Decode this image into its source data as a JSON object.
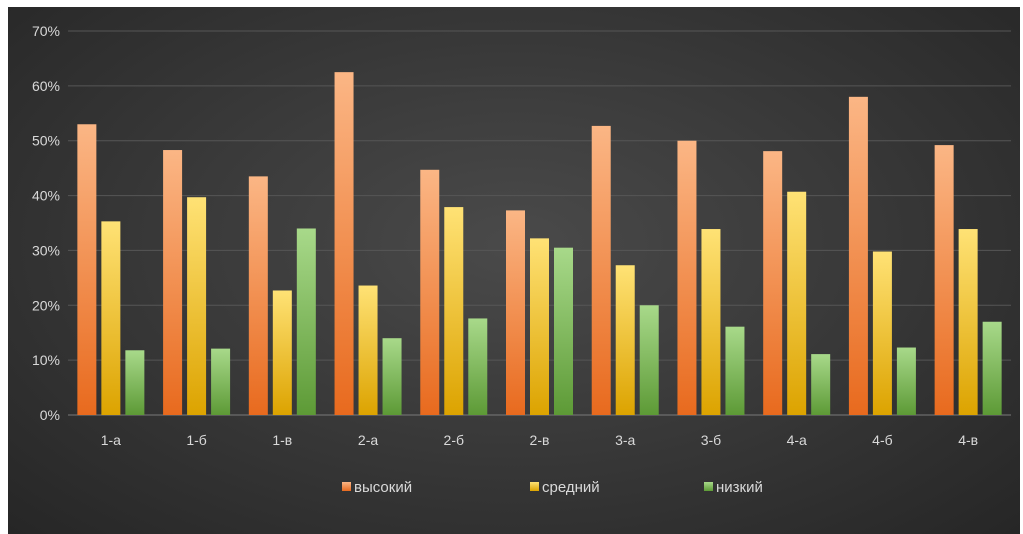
{
  "chart_data": {
    "type": "bar",
    "categories": [
      "1-а",
      "1-б",
      "1-в",
      "2-а",
      "2-б",
      "2-в",
      "3-а",
      "3-б",
      "4-а",
      "4-б",
      "4-в"
    ],
    "series": [
      {
        "name": "высокий",
        "color": "#ed7d31",
        "values": [
          53,
          48.3,
          43.5,
          62.5,
          44.7,
          37.3,
          52.7,
          50,
          48.1,
          58,
          49.2
        ]
      },
      {
        "name": "средний",
        "color": "#f2bc0e",
        "values": [
          35.3,
          39.7,
          22.7,
          23.6,
          37.9,
          32.2,
          27.3,
          33.9,
          40.7,
          29.8,
          33.9
        ]
      },
      {
        "name": "низкий",
        "color": "#70ad47",
        "values": [
          11.8,
          12.1,
          34,
          14,
          17.6,
          30.5,
          20,
          16.1,
          11.1,
          12.3,
          17
        ]
      }
    ],
    "ylim": [
      0,
      70
    ],
    "yticks": [
      "0%",
      "10%",
      "20%",
      "30%",
      "40%",
      "50%",
      "60%",
      "70%"
    ],
    "grid": true,
    "legend_position": "bottom"
  }
}
